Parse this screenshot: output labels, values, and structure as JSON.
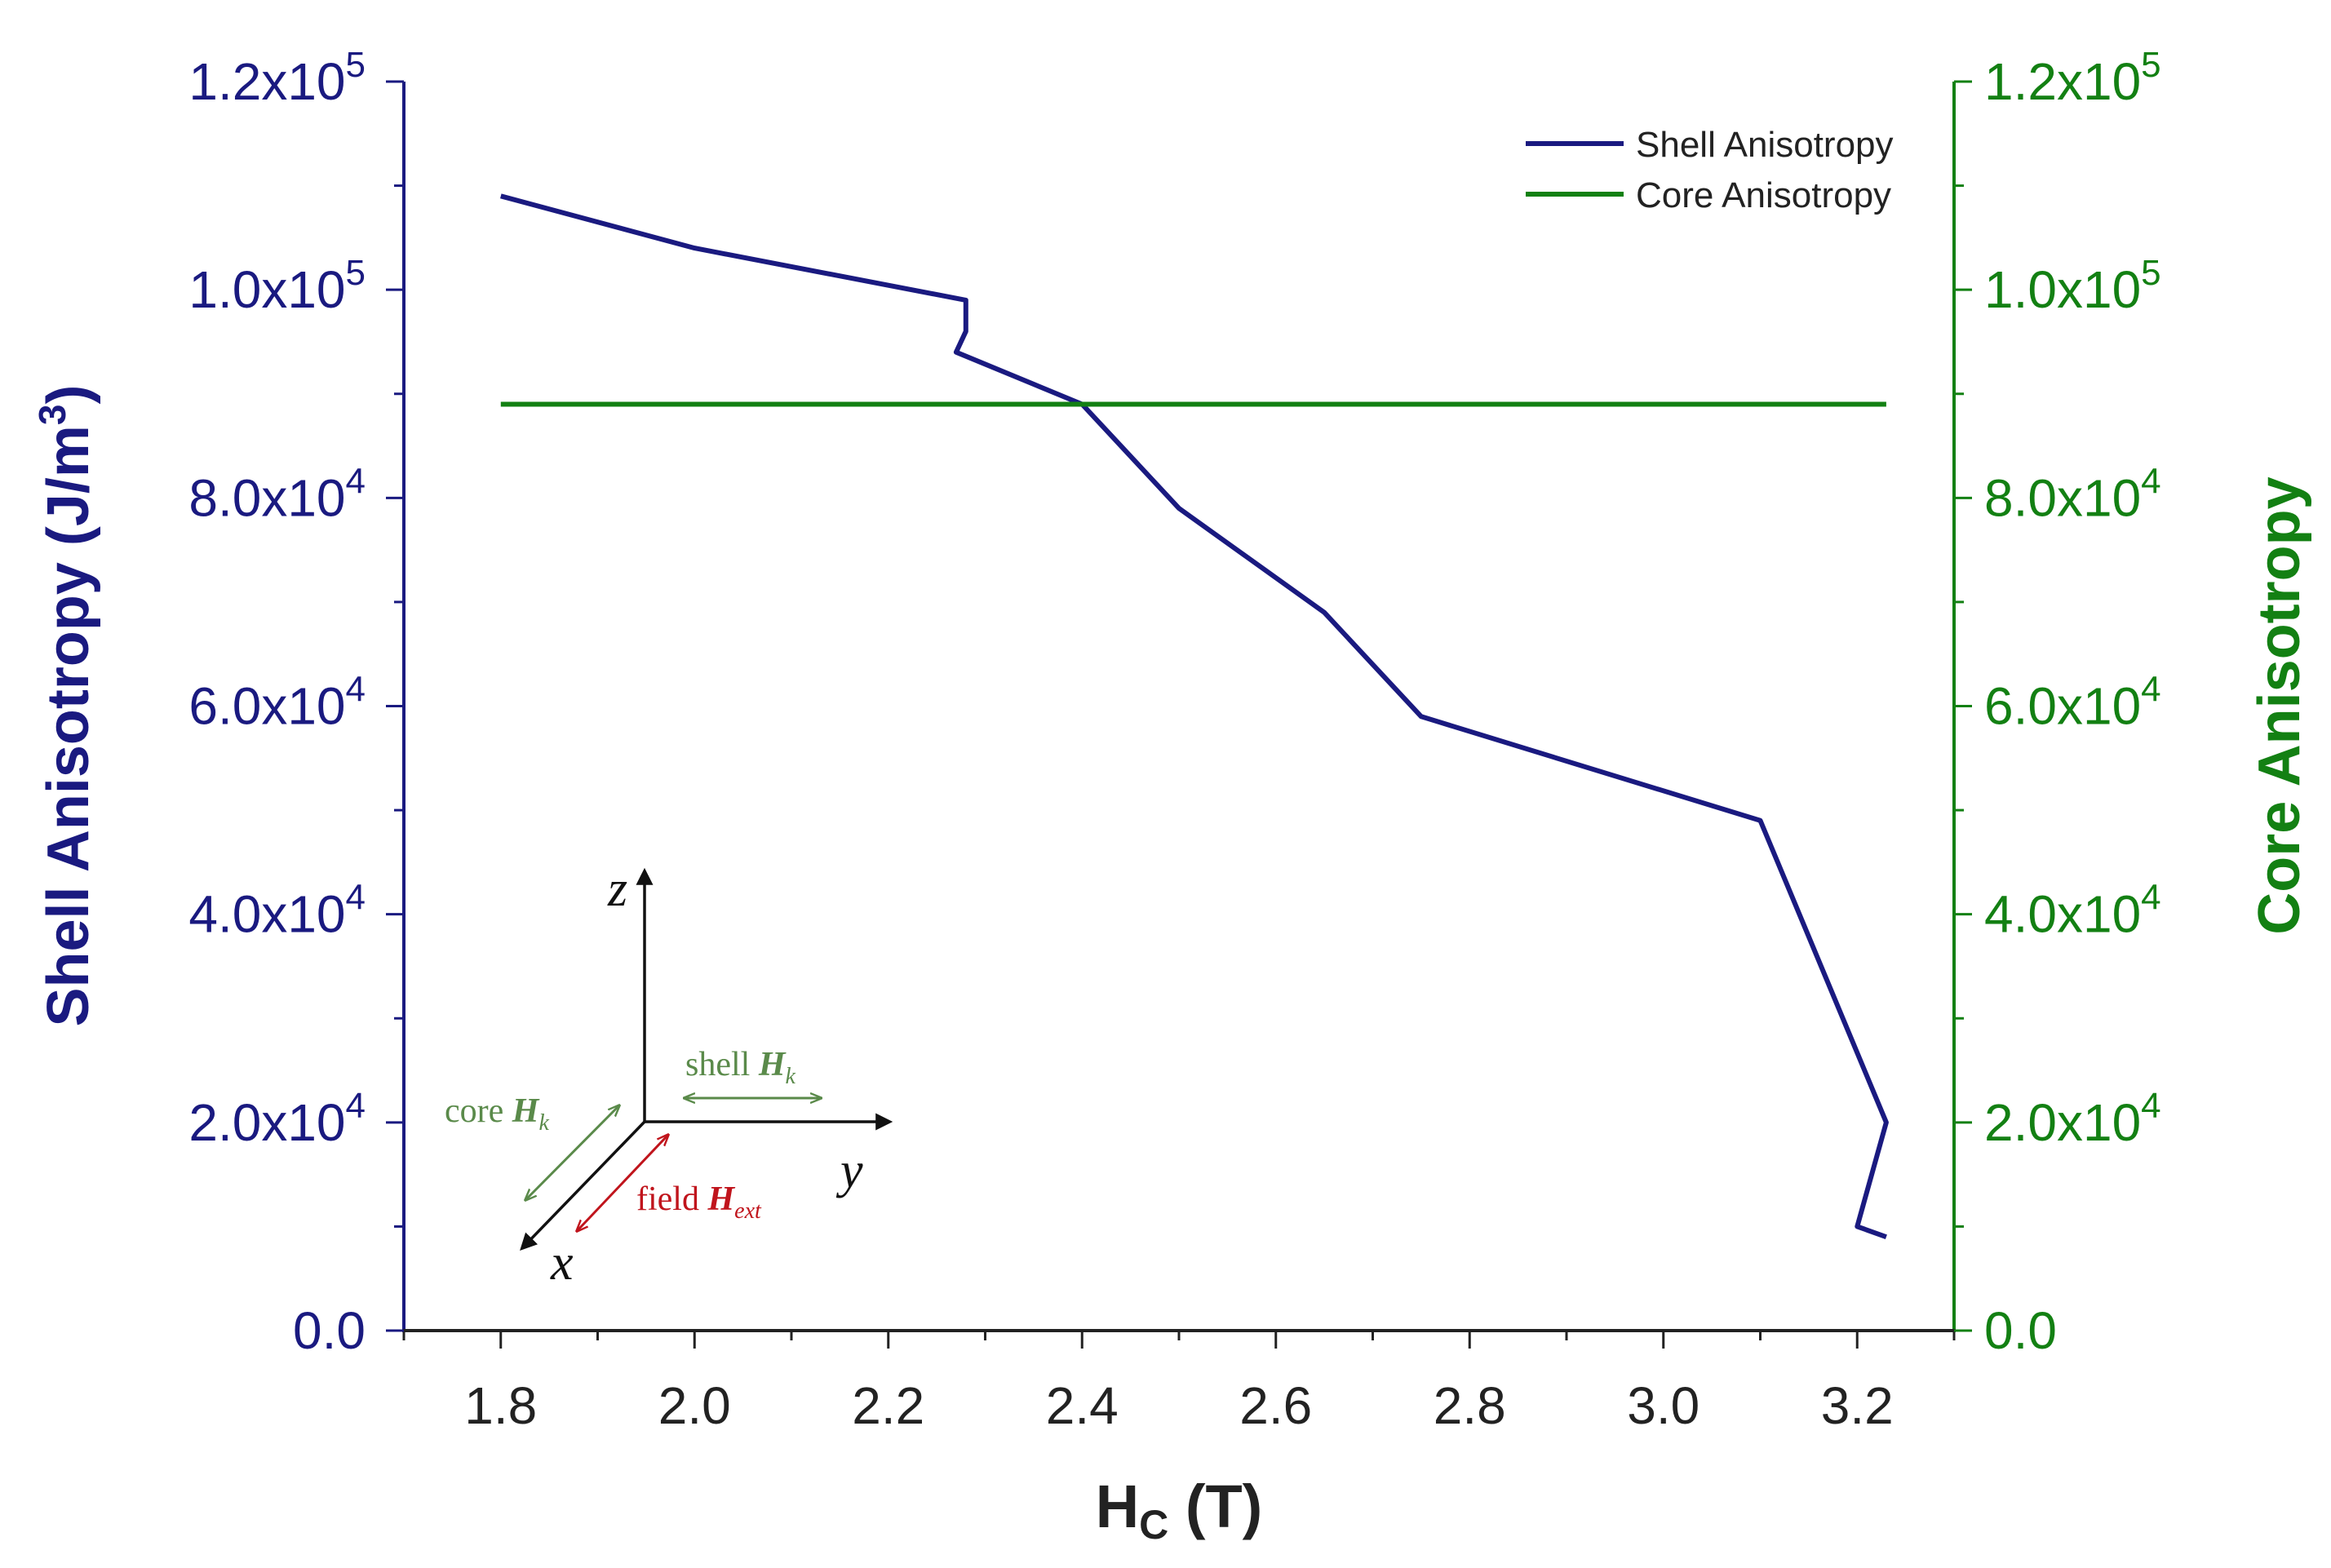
{
  "chart_data": {
    "type": "line",
    "title": "",
    "xlabel_main": "H",
    "xlabel_sub": "C",
    "xlabel_unit": "(T)",
    "xlim": [
      1.7,
      3.3
    ],
    "x_ticks": [
      "1.8",
      "2.0",
      "2.2",
      "2.4",
      "2.6",
      "2.8",
      "3.0",
      "3.2"
    ],
    "x_tick_values": [
      1.8,
      2.0,
      2.2,
      2.4,
      2.6,
      2.8,
      3.0,
      3.2
    ],
    "ylabel_left": "Shell Anisotropy (J/m",
    "ylabel_left_sup": "3",
    "ylabel_left_close": ")",
    "ylabel_right": "Core Anisotropy",
    "ylim": [
      0,
      120000
    ],
    "y_tick_values": [
      0,
      20000,
      40000,
      60000,
      80000,
      100000,
      120000
    ],
    "y_ticks": [
      {
        "mantissa": "0.0",
        "exp": ""
      },
      {
        "mantissa": "2.0x10",
        "exp": "4"
      },
      {
        "mantissa": "4.0x10",
        "exp": "4"
      },
      {
        "mantissa": "6.0x10",
        "exp": "4"
      },
      {
        "mantissa": "8.0x10",
        "exp": "4"
      },
      {
        "mantissa": "1.0x10",
        "exp": "5"
      },
      {
        "mantissa": "1.2x10",
        "exp": "5"
      }
    ],
    "series": [
      {
        "name": "Shell Anisotropy",
        "color": "#1a1a80",
        "axis": "left",
        "x": [
          1.8,
          2.0,
          2.28,
          2.28,
          2.27,
          2.4,
          2.5,
          2.65,
          2.75,
          3.1,
          3.23,
          3.2,
          3.23
        ],
        "y": [
          109000,
          104000,
          99000,
          96000,
          94000,
          89000,
          79000,
          69000,
          59000,
          49000,
          20000,
          10000,
          9000
        ]
      },
      {
        "name": "Core Anisotropy",
        "color": "#138013",
        "axis": "right",
        "x": [
          1.8,
          3.23
        ],
        "y": [
          89000,
          89000
        ]
      }
    ],
    "legend_position": "top-right"
  },
  "inset": {
    "axis_z": "z",
    "axis_y": "y",
    "axis_x": "x",
    "shell_label": "shell ",
    "shell_H": "H",
    "shell_sub": "k",
    "core_label": "core ",
    "core_H": "H",
    "core_sub": "k",
    "field_label": "field ",
    "field_H": "H",
    "field_sub": "ext",
    "colors": {
      "axes": "#111111",
      "anisotropy": "#5a8a4a",
      "field": "#c0141c"
    }
  }
}
